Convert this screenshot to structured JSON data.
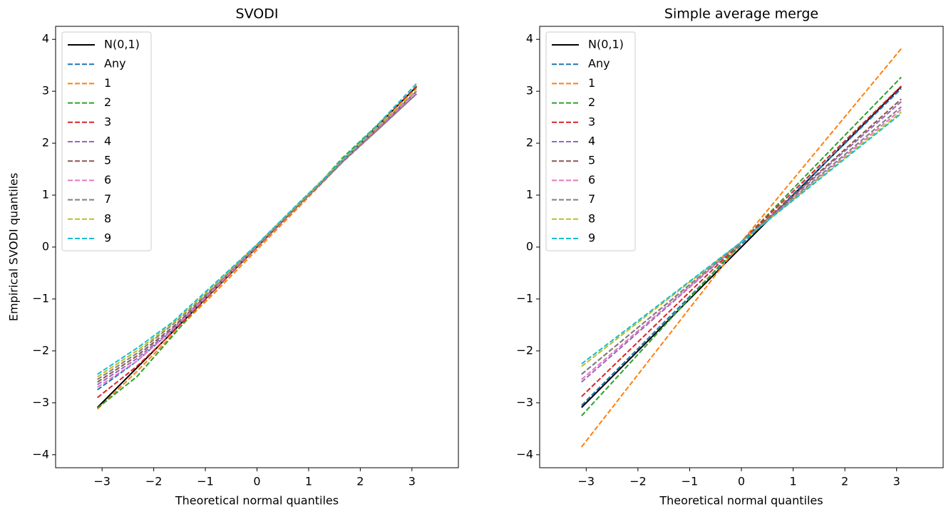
{
  "chart_data": [
    {
      "type": "line",
      "title": "SVODI",
      "xlabel": "Theoretical normal quantiles",
      "ylabel": "Empirical SVODI quantiles",
      "x": [
        -3.09,
        -2.33,
        -1.64,
        -1.28,
        -0.84,
        0,
        0.84,
        1.28,
        1.64,
        2.33,
        3.09
      ],
      "xlim": [
        -3.9,
        3.9
      ],
      "ylim": [
        -4.25,
        4.25
      ],
      "xticks": [
        {
          "value": -3,
          "label": "−3"
        },
        {
          "value": -2,
          "label": "−2"
        },
        {
          "value": -1,
          "label": "−1"
        },
        0,
        1,
        2,
        3
      ],
      "yticks": [
        {
          "value": -4,
          "label": "−4"
        },
        {
          "value": -3,
          "label": "−3"
        },
        {
          "value": -2,
          "label": "−2"
        },
        {
          "value": -1,
          "label": "−1"
        },
        0,
        1,
        2,
        3,
        4
      ],
      "legend": "upper left",
      "series": [
        {
          "name": "N(0,1)",
          "color": "#000000",
          "linestyle": "solid",
          "values": [
            -3.09,
            -2.33,
            -1.64,
            -1.28,
            -0.84,
            0,
            0.84,
            1.28,
            1.64,
            2.33,
            3.09
          ]
        },
        {
          "name": "Any",
          "color": "#1f77b4",
          "linestyle": "dashed",
          "values": [
            -2.75,
            -2.2,
            -1.6,
            -1.25,
            -0.82,
            0.02,
            0.85,
            1.28,
            1.65,
            2.3,
            3.0
          ]
        },
        {
          "name": "1",
          "color": "#ff7f0e",
          "linestyle": "dashed",
          "values": [
            -3.12,
            -2.4,
            -1.7,
            -1.33,
            -0.9,
            -0.05,
            0.8,
            1.25,
            1.62,
            2.3,
            3.05
          ]
        },
        {
          "name": "2",
          "color": "#2ca02c",
          "linestyle": "dashed",
          "values": [
            -3.1,
            -2.5,
            -1.72,
            -1.3,
            -0.85,
            0,
            0.85,
            1.3,
            1.7,
            2.35,
            3.05
          ]
        },
        {
          "name": "3",
          "color": "#d62728",
          "linestyle": "dashed",
          "values": [
            -2.9,
            -2.3,
            -1.65,
            -1.28,
            -0.84,
            0,
            0.84,
            1.28,
            1.65,
            2.32,
            3.1
          ]
        },
        {
          "name": "4",
          "color": "#9467bd",
          "linestyle": "dashed",
          "values": [
            -2.65,
            -2.15,
            -1.58,
            -1.23,
            -0.8,
            0.02,
            0.84,
            1.26,
            1.62,
            2.25,
            2.95
          ]
        },
        {
          "name": "5",
          "color": "#8c564b",
          "linestyle": "dashed",
          "values": [
            -2.6,
            -2.1,
            -1.55,
            -1.22,
            -0.8,
            0.02,
            0.84,
            1.27,
            1.63,
            2.27,
            3.0
          ]
        },
        {
          "name": "6",
          "color": "#e377c2",
          "linestyle": "dashed",
          "values": [
            -2.7,
            -2.2,
            -1.6,
            -1.25,
            -0.82,
            0.02,
            0.85,
            1.28,
            1.64,
            2.28,
            3.0
          ]
        },
        {
          "name": "7",
          "color": "#7f7f7f",
          "linestyle": "dashed",
          "values": [
            -2.55,
            -2.05,
            -1.5,
            -1.18,
            -0.77,
            0.03,
            0.85,
            1.27,
            1.63,
            2.25,
            2.95
          ]
        },
        {
          "name": "8",
          "color": "#bcbd22",
          "linestyle": "dashed",
          "values": [
            -2.5,
            -2.0,
            -1.48,
            -1.15,
            -0.75,
            0.05,
            0.87,
            1.3,
            1.67,
            2.32,
            3.05
          ]
        },
        {
          "name": "9",
          "color": "#17becf",
          "linestyle": "dashed",
          "values": [
            -2.45,
            -1.95,
            -1.45,
            -1.12,
            -0.72,
            0.05,
            0.88,
            1.3,
            1.67,
            2.35,
            3.15
          ]
        }
      ]
    },
    {
      "type": "line",
      "title": "Simple average merge",
      "xlabel": "Theoretical normal quantiles",
      "x": [
        -3.09,
        0,
        3.09
      ],
      "xlim": [
        -3.9,
        3.9
      ],
      "ylim": [
        -4.25,
        4.25
      ],
      "xticks": [
        {
          "value": -3,
          "label": "−3"
        },
        {
          "value": -2,
          "label": "−2"
        },
        {
          "value": -1,
          "label": "−1"
        },
        0,
        1,
        2,
        3
      ],
      "yticks": [
        {
          "value": -4,
          "label": "−4"
        },
        {
          "value": -3,
          "label": "−3"
        },
        {
          "value": -2,
          "label": "−2"
        },
        {
          "value": -1,
          "label": "−1"
        },
        0,
        1,
        2,
        3,
        4
      ],
      "legend": "upper left",
      "series": [
        {
          "name": "N(0,1)",
          "color": "#000000",
          "linestyle": "solid",
          "values": [
            -3.09,
            0,
            3.09
          ]
        },
        {
          "name": "Any",
          "color": "#1f77b4",
          "linestyle": "dashed",
          "values": [
            -3.05,
            0.05,
            3.05
          ]
        },
        {
          "name": "1",
          "color": "#ff7f0e",
          "linestyle": "dashed",
          "values": [
            -3.85,
            0.1,
            3.82
          ]
        },
        {
          "name": "2",
          "color": "#2ca02c",
          "linestyle": "dashed",
          "values": [
            -3.25,
            0.1,
            3.27
          ]
        },
        {
          "name": "3",
          "color": "#d62728",
          "linestyle": "dashed",
          "values": [
            -2.88,
            0.1,
            3.1
          ]
        },
        {
          "name": "4",
          "color": "#9467bd",
          "linestyle": "dashed",
          "values": [
            -2.6,
            0.1,
            2.8
          ]
        },
        {
          "name": "5",
          "color": "#8c564b",
          "linestyle": "dashed",
          "values": [
            -2.45,
            0.1,
            2.85
          ]
        },
        {
          "name": "6",
          "color": "#e377c2",
          "linestyle": "dashed",
          "values": [
            -2.55,
            0.1,
            2.65
          ]
        },
        {
          "name": "7",
          "color": "#7f7f7f",
          "linestyle": "dashed",
          "values": [
            -2.45,
            0.1,
            2.7
          ]
        },
        {
          "name": "8",
          "color": "#bcbd22",
          "linestyle": "dashed",
          "values": [
            -2.3,
            0.1,
            2.6
          ]
        },
        {
          "name": "9",
          "color": "#17becf",
          "linestyle": "dashed",
          "values": [
            -2.25,
            0.1,
            2.57
          ]
        }
      ]
    }
  ]
}
